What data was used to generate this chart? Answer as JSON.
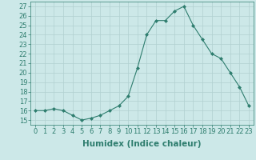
{
  "x": [
    0,
    1,
    2,
    3,
    4,
    5,
    6,
    7,
    8,
    9,
    10,
    11,
    12,
    13,
    14,
    15,
    16,
    17,
    18,
    19,
    20,
    21,
    22,
    23
  ],
  "y": [
    16,
    16,
    16.2,
    16,
    15.5,
    15,
    15.2,
    15.5,
    16,
    16.5,
    17.5,
    20.5,
    24,
    25.5,
    25.5,
    26.5,
    27,
    25,
    23.5,
    22,
    21.5,
    20,
    18.5,
    16.5
  ],
  "line_color": "#2e7d6e",
  "marker": "D",
  "marker_size": 2.0,
  "bg_color": "#cce8e8",
  "grid_color": "#b0d0d0",
  "xlabel": "Humidex (Indice chaleur)",
  "ylabel_ticks": [
    15,
    16,
    17,
    18,
    19,
    20,
    21,
    22,
    23,
    24,
    25,
    26,
    27
  ],
  "xlim": [
    -0.5,
    23.5
  ],
  "ylim": [
    14.5,
    27.5
  ],
  "line_width": 0.8,
  "tick_color": "#2e7d6e",
  "xlabel_fontsize": 7.5,
  "tick_fontsize": 6.0
}
